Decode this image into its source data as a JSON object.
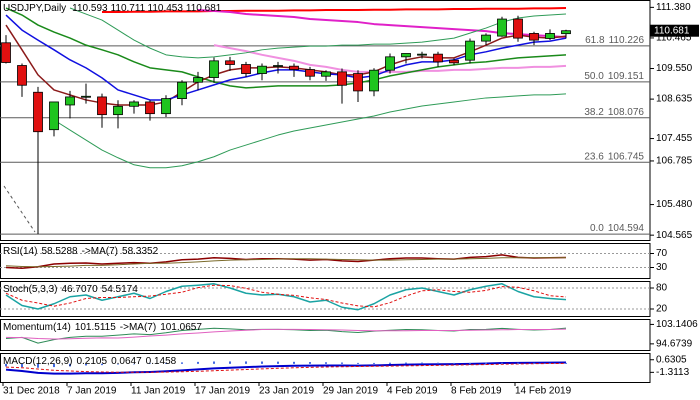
{
  "chart_data": [
    {
      "type": "candlestick",
      "title": "USDJPY,Daily",
      "categories": [
        "31 Dec 2018",
        null,
        null,
        null,
        "7 Jan 2019",
        null,
        null,
        null,
        "11 Jan 2019",
        null,
        null,
        null,
        "17 Jan 2019",
        null,
        null,
        null,
        "23 Jan 2019",
        null,
        null,
        null,
        "29 Jan 2019",
        null,
        null,
        null,
        "4 Feb 2019",
        null,
        null,
        null,
        "8 Feb 2019",
        null,
        null,
        null,
        "14 Feb 2019",
        null,
        null,
        null
      ],
      "open": [
        110.32,
        109.64,
        108.84,
        107.72,
        108.46,
        108.7,
        108.7,
        108.17,
        108.42,
        108.55,
        108.2,
        108.65,
        109.14,
        109.28,
        109.78,
        109.67,
        109.4,
        109.62,
        109.62,
        109.52,
        109.32,
        109.45,
        109.4,
        108.88,
        109.5,
        109.9,
        109.95,
        109.98,
        109.8,
        109.8,
        110.37,
        110.52,
        111.03,
        110.6,
        110.45,
        110.593
      ],
      "high": [
        110.55,
        109.7,
        109.0,
        108.55,
        108.88,
        109.1,
        108.8,
        108.6,
        108.6,
        108.6,
        108.75,
        109.2,
        109.45,
        109.88,
        109.9,
        109.75,
        109.7,
        109.75,
        109.7,
        109.6,
        109.5,
        109.55,
        109.5,
        109.56,
        110.0,
        110.0,
        110.05,
        110.05,
        109.85,
        110.45,
        110.6,
        111.1,
        111.13,
        110.65,
        110.72,
        110.711
      ],
      "low": [
        109.7,
        108.7,
        104.594,
        107.52,
        108.06,
        108.5,
        107.78,
        107.76,
        108.2,
        107.99,
        108.1,
        108.45,
        108.9,
        109.12,
        109.48,
        109.3,
        109.2,
        109.4,
        109.3,
        109.2,
        109.18,
        108.5,
        108.55,
        108.72,
        109.4,
        109.7,
        109.85,
        109.6,
        109.65,
        109.7,
        110.25,
        110.5,
        110.35,
        110.25,
        110.4,
        110.453
      ],
      "close": [
        109.73,
        109.05,
        107.66,
        108.55,
        108.7,
        108.72,
        108.17,
        108.42,
        108.55,
        108.2,
        108.65,
        109.14,
        109.28,
        109.78,
        109.67,
        109.4,
        109.62,
        109.64,
        109.52,
        109.32,
        109.45,
        109.05,
        108.88,
        109.5,
        109.9,
        110.0,
        109.98,
        109.75,
        109.72,
        110.37,
        110.55,
        111.03,
        110.46,
        110.4,
        110.6,
        110.681
      ],
      "up_color": "#1fc41f",
      "down_color": "#e01010",
      "ylim": [
        104.42,
        111.6
      ],
      "yticks": [
        {
          "value": 111.38,
          "label": "111.380"
        },
        110.465,
        {
          "value": 109.55,
          "label": "109.550"
        },
        108.635,
        107.455,
        106.785,
        {
          "value": 105.48,
          "label": "105.480"
        },
        104.565
      ],
      "fibonacci": [
        {
          "level": "61.8",
          "value": 110.226
        },
        {
          "level": "50.0",
          "value": 109.151
        },
        {
          "level": "38.2",
          "value": 108.076
        },
        {
          "level": "23.6",
          "value": 106.745
        },
        {
          "level": "0.0",
          "value": 104.594
        }
      ],
      "fib_color": "#5a5a5a",
      "series": [
        {
          "color": "#ff0000",
          "width": 2,
          "values": [
            null,
            null,
            null,
            null,
            null,
            null,
            111.24,
            111.24,
            111.25,
            111.25,
            111.26,
            111.26,
            111.26,
            111.27,
            111.27,
            111.28,
            111.28,
            111.28,
            111.29,
            111.29,
            111.3,
            111.3,
            111.3,
            111.31,
            111.31,
            111.32,
            111.32,
            111.32,
            111.33,
            111.33,
            111.34,
            111.34,
            111.34,
            111.35,
            111.35,
            111.36
          ]
        },
        {
          "color": "#e020c8",
          "width": 2,
          "values": [
            null,
            null,
            null,
            null,
            null,
            null,
            null,
            null,
            null,
            null,
            null,
            null,
            111.3,
            111.27,
            111.24,
            111.18,
            111.15,
            111.12,
            111.09,
            111.03,
            111.0,
            110.97,
            110.94,
            110.88,
            110.85,
            110.82,
            110.79,
            110.76,
            110.73,
            110.7,
            110.67,
            110.61,
            110.58,
            110.55,
            110.52,
            110.49
          ]
        },
        {
          "color": "#f090e0",
          "width": 2,
          "values": [
            null,
            null,
            null,
            null,
            null,
            null,
            null,
            null,
            null,
            null,
            null,
            null,
            null,
            110.25,
            110.16,
            110.07,
            109.96,
            109.87,
            109.78,
            109.66,
            109.6,
            109.51,
            109.45,
            109.45,
            109.45,
            109.45,
            109.48,
            109.48,
            109.51,
            109.51,
            109.54,
            109.57,
            109.57,
            109.6,
            109.6,
            109.63
          ]
        },
        {
          "color": "#1a8a1a",
          "width": 1.5,
          "values": [
            111.36,
            111.15,
            110.85,
            110.64,
            110.46,
            110.25,
            110.11,
            109.96,
            109.75,
            109.57,
            109.51,
            109.45,
            109.3,
            109.15,
            109.03,
            108.97,
            109.0,
            109.03,
            109.03,
            109.03,
            109.03,
            109.06,
            109.12,
            109.21,
            109.33,
            109.42,
            109.51,
            109.6,
            109.66,
            109.72,
            109.75,
            109.81,
            109.87,
            109.9,
            109.93,
            109.96
          ]
        },
        {
          "color": "#2e9b57",
          "width": 1,
          "values": [
            null,
            null,
            null,
            null,
            111.36,
            111.18,
            111.0,
            110.7,
            110.4,
            110.16,
            109.96,
            109.9,
            109.87,
            109.9,
            109.96,
            110.02,
            110.11,
            110.16,
            110.19,
            110.22,
            110.22,
            110.25,
            110.25,
            110.28,
            110.28,
            110.31,
            110.34,
            110.4,
            110.46,
            110.61,
            110.76,
            110.94,
            111.06,
            111.12,
            111.15,
            111.18
          ]
        },
        {
          "color": "#2e9b57",
          "width": 1,
          "values": [
            null,
            null,
            null,
            108.01,
            107.71,
            107.41,
            107.11,
            106.88,
            106.67,
            106.58,
            106.58,
            106.64,
            106.76,
            106.91,
            107.11,
            107.26,
            107.41,
            107.56,
            107.68,
            107.77,
            107.86,
            107.95,
            108.04,
            108.13,
            108.25,
            108.34,
            108.43,
            108.49,
            108.55,
            108.61,
            108.67,
            108.7,
            108.73,
            108.76,
            108.76,
            108.79
          ]
        },
        {
          "color": "#8b1a1a",
          "width": 1.5,
          "values": [
            110.85,
            110.11,
            109.36,
            108.91,
            108.76,
            108.61,
            108.52,
            108.46,
            108.46,
            108.46,
            108.55,
            108.85,
            109.15,
            109.36,
            109.51,
            109.57,
            109.57,
            109.6,
            109.57,
            109.51,
            109.45,
            109.36,
            109.36,
            109.45,
            109.66,
            109.81,
            109.9,
            109.87,
            109.87,
            110.05,
            110.25,
            110.46,
            110.55,
            110.49,
            110.46,
            110.52
          ]
        },
        {
          "color": "#1010e0",
          "width": 1.5,
          "values": [
            111.15,
            110.7,
            110.4,
            110.11,
            109.81,
            109.57,
            109.27,
            108.91,
            108.76,
            108.61,
            108.61,
            108.76,
            108.91,
            109.06,
            109.21,
            109.3,
            109.42,
            109.51,
            109.51,
            109.45,
            109.39,
            109.36,
            109.27,
            109.33,
            109.51,
            109.66,
            109.75,
            109.75,
            109.81,
            109.96,
            110.05,
            110.16,
            110.25,
            110.34,
            110.37,
            110.46
          ]
        }
      ]
    },
    {
      "type": "line",
      "ylim": [
        0,
        100
      ],
      "yticks": [
        70,
        30
      ],
      "grid": true,
      "series": [
        {
          "name": "RSI(14)",
          "color": "#8b0000",
          "width": 1.5,
          "values": [
            30,
            28,
            32,
            40,
            42,
            43,
            40,
            42,
            44,
            42,
            46,
            52,
            54,
            58,
            56,
            53,
            55,
            55,
            54,
            51,
            53,
            49,
            47,
            51,
            55,
            57,
            57,
            55,
            54,
            59,
            61,
            66,
            59,
            57,
            58,
            58.5288
          ]
        },
        {
          "name": "->MA(7)",
          "color": "#7a6a2a",
          "width": 1,
          "values": [
            35,
            33,
            32,
            33,
            34,
            36,
            36,
            38,
            40,
            42,
            42,
            44,
            46,
            49,
            51,
            52,
            53,
            54,
            55,
            55,
            54,
            53,
            52,
            51,
            51,
            52,
            53,
            54,
            54,
            55,
            56,
            58,
            58,
            58,
            58,
            58.3352
          ]
        }
      ]
    },
    {
      "type": "line",
      "ylim": [
        0,
        100
      ],
      "yticks": [
        80,
        20
      ],
      "grid": true,
      "series": [
        {
          "name": "Stoch(5,3,3)",
          "color": "#1aa3a3",
          "width": 1.5,
          "values": [
            60,
            30,
            20,
            35,
            55,
            60,
            45,
            55,
            65,
            50,
            70,
            85,
            88,
            92,
            80,
            65,
            60,
            62,
            55,
            40,
            45,
            25,
            18,
            35,
            60,
            75,
            80,
            70,
            60,
            75,
            85,
            92,
            70,
            55,
            50,
            46.707
          ],
          "value_labels": [
            null,
            null,
            null,
            null,
            null,
            null,
            null,
            null,
            null,
            null,
            null,
            null,
            null,
            null,
            null,
            null,
            null,
            null,
            null,
            null,
            null,
            null,
            null,
            null,
            null,
            null,
            null,
            null,
            null,
            null,
            null,
            null,
            null,
            null,
            null,
            "46.7070"
          ]
        },
        {
          "color": "#e01010",
          "width": 1,
          "style": "dash",
          "values": [
            65,
            45,
            37,
            28,
            37,
            50,
            53,
            53,
            55,
            57,
            62,
            68,
            81,
            88,
            87,
            79,
            68,
            62,
            59,
            52,
            47,
            37,
            29,
            26,
            38,
            57,
            72,
            75,
            70,
            68,
            73,
            84,
            82,
            72,
            58,
            54.5174
          ]
        }
      ]
    },
    {
      "type": "line",
      "ylim": [
        92,
        105.5
      ],
      "yticks": [
        103.1406,
        94.6739
      ],
      "grid": false,
      "series": [
        {
          "name": "Momentum(14)",
          "color": "#2e8b57",
          "width": 1,
          "values": [
            97,
            97.5,
            95,
            96.5,
            97.5,
            98,
            98,
            98.5,
            99,
            98.7,
            99.5,
            100.5,
            101,
            101.5,
            101.2,
            100.8,
            101,
            101,
            100.8,
            100.5,
            100.6,
            100,
            99.6,
            100.2,
            100.6,
            100.9,
            100.8,
            100.5,
            100.3,
            100.9,
            101,
            101.4,
            101,
            100.7,
            100.9,
            101.5115
          ]
        },
        {
          "name": "->MA(7)",
          "color": "#e060c0",
          "width": 1,
          "values": [
            97.5,
            97.4,
            97,
            96.8,
            96.9,
            97.1,
            97.3,
            97.2,
            97.6,
            98.1,
            98.5,
            99,
            99.4,
            99.9,
            100.3,
            100.6,
            100.9,
            101,
            101,
            100.9,
            100.8,
            100.7,
            100.5,
            100.4,
            100.4,
            100.4,
            100.5,
            100.5,
            100.5,
            100.6,
            100.7,
            100.8,
            100.9,
            100.9,
            100.9,
            101.0657
          ]
        }
      ]
    },
    {
      "type": "line",
      "ylim": [
        -2.8,
        1.67
      ],
      "yticks": [
        0.6305,
        -1.3113
      ],
      "grid": false,
      "series": [
        {
          "name": "MACD(12,26,9)",
          "color": "#0000cd",
          "width": 2,
          "values": [
            -0.9,
            -1.1,
            -1.4,
            -1.5,
            -1.5,
            -1.45,
            -1.45,
            -1.4,
            -1.3,
            -1.25,
            -1.15,
            -1.0,
            -0.85,
            -0.7,
            -0.6,
            -0.5,
            -0.42,
            -0.35,
            -0.3,
            -0.28,
            -0.25,
            -0.25,
            -0.27,
            -0.24,
            -0.18,
            -0.12,
            -0.08,
            -0.06,
            -0.05,
            0.0,
            0.05,
            0.12,
            0.15,
            0.17,
            0.19,
            0.2105
          ]
        },
        {
          "color": "#e01010",
          "width": 1,
          "style": "dash",
          "values": [
            -0.5,
            -0.6,
            -0.8,
            -1.0,
            -1.1,
            -1.2,
            -1.25,
            -1.3,
            -1.3,
            -1.3,
            -1.27,
            -1.22,
            -1.15,
            -1.06,
            -0.97,
            -0.87,
            -0.78,
            -0.69,
            -0.61,
            -0.55,
            -0.49,
            -0.45,
            -0.41,
            -0.38,
            -0.35,
            -0.31,
            -0.27,
            -0.23,
            -0.19,
            -0.15,
            -0.11,
            -0.06,
            -0.02,
            0.02,
            0.05,
            0.0647
          ]
        },
        {
          "color": "#4169e1",
          "width": 2,
          "style": "bar",
          "values": [
            -0.4,
            -0.5,
            -0.6,
            -0.5,
            -0.4,
            -0.25,
            -0.2,
            -0.1,
            0.0,
            0.05,
            0.12,
            0.22,
            0.3,
            0.36,
            0.37,
            0.37,
            0.36,
            0.34,
            0.31,
            0.27,
            0.24,
            0.2,
            0.14,
            0.14,
            0.17,
            0.19,
            0.19,
            0.17,
            0.14,
            0.15,
            0.16,
            0.18,
            0.17,
            0.15,
            0.14,
            0.1458
          ]
        }
      ]
    }
  ]
}
